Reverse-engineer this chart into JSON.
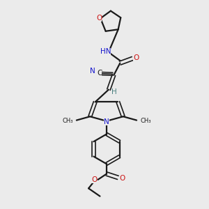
{
  "background_color": "#ebebeb",
  "bond_color": "#1a1a1a",
  "nitrogen_color": "#1414cc",
  "oxygen_color": "#cc1414",
  "carbon_color": "#1a1a1a",
  "teal_color": "#4a8080",
  "figsize": [
    3.0,
    3.0
  ],
  "dpi": 100,
  "xlim": [
    0,
    10
  ],
  "ylim": [
    0,
    10
  ]
}
